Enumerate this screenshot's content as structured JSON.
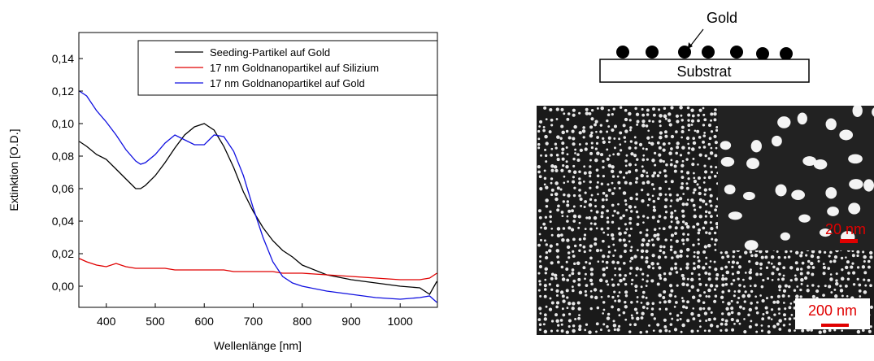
{
  "chart_data": {
    "type": "line",
    "x_label": "Wellenlänge [nm]",
    "y_label": "Extinktion [O.D.]",
    "x": [
      345,
      360,
      380,
      400,
      420,
      440,
      460,
      470,
      480,
      500,
      520,
      540,
      560,
      580,
      600,
      620,
      640,
      660,
      680,
      700,
      720,
      740,
      760,
      780,
      800,
      850,
      900,
      950,
      1000,
      1040,
      1060,
      1075
    ],
    "series": [
      {
        "name": "Seeding-Partikel auf Gold",
        "color": "#000000",
        "values": [
          0.089,
          0.086,
          0.081,
          0.078,
          0.072,
          0.066,
          0.06,
          0.06,
          0.062,
          0.068,
          0.076,
          0.085,
          0.093,
          0.098,
          0.1,
          0.096,
          0.086,
          0.073,
          0.058,
          0.046,
          0.036,
          0.028,
          0.022,
          0.018,
          0.013,
          0.007,
          0.004,
          0.002,
          0.0,
          -0.001,
          -0.005,
          0.003
        ]
      },
      {
        "name": "17 nm Goldnanopartikel auf Silizium",
        "color": "#e00000",
        "values": [
          0.017,
          0.015,
          0.013,
          0.012,
          0.014,
          0.012,
          0.011,
          0.011,
          0.011,
          0.011,
          0.011,
          0.01,
          0.01,
          0.01,
          0.01,
          0.01,
          0.01,
          0.009,
          0.009,
          0.009,
          0.009,
          0.009,
          0.008,
          0.008,
          0.008,
          0.007,
          0.006,
          0.005,
          0.004,
          0.004,
          0.005,
          0.008
        ]
      },
      {
        "name": "17 nm Goldnanopartikel auf Gold",
        "color": "#1010e0",
        "values": [
          0.12,
          0.117,
          0.108,
          0.101,
          0.093,
          0.084,
          0.077,
          0.075,
          0.076,
          0.081,
          0.088,
          0.093,
          0.09,
          0.087,
          0.087,
          0.093,
          0.092,
          0.083,
          0.068,
          0.048,
          0.03,
          0.015,
          0.006,
          0.002,
          0.0,
          -0.003,
          -0.005,
          -0.007,
          -0.008,
          -0.007,
          -0.006,
          -0.01
        ]
      }
    ],
    "xlim": [
      344,
      1076
    ],
    "xticks": [
      400,
      500,
      600,
      700,
      800,
      900,
      1000
    ],
    "ylim": [
      -0.013,
      0.156
    ],
    "yticks": [
      {
        "value": 0,
        "label": "0,00"
      },
      {
        "value": 0.02,
        "label": "0,02"
      },
      {
        "value": 0.04,
        "label": "0,04"
      },
      {
        "value": 0.06,
        "label": "0,06"
      },
      {
        "value": 0.08,
        "label": "0,08"
      },
      {
        "value": 0.1,
        "label": "0,10"
      },
      {
        "value": 0.12,
        "label": "0,12"
      },
      {
        "value": 0.14,
        "label": "0,14"
      }
    ],
    "grid": false,
    "legend": "top-right"
  },
  "figure": {
    "label": "Gold",
    "substrate": "Substrat",
    "scale_bar": "200 nm",
    "inset_scale_bar": "20 nm"
  }
}
